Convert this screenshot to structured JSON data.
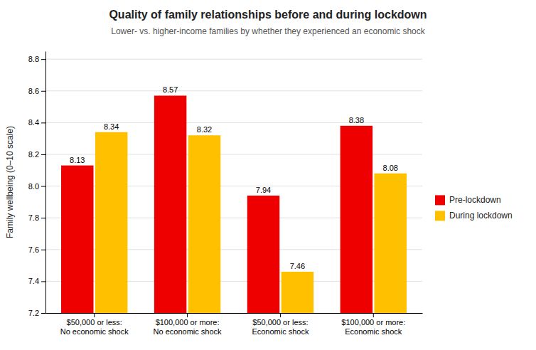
{
  "chart_data": {
    "type": "bar",
    "title": "Quality of family relationships before and during lockdown",
    "subtitle": "Lower- vs. higher-income families by whether they experienced an economic shock",
    "categories": [
      "$50,000 or less:\nNo economic shock",
      "$100,000 or more:\nNo economic shock",
      "$50,000 or less:\nEconomic shock",
      "$100,000 or more:\nEconomic shock"
    ],
    "series": [
      {
        "name": "Pre-lockdown",
        "color": "#EE0000",
        "values": [
          8.13,
          8.57,
          7.94,
          8.38
        ]
      },
      {
        "name": "During lockdown",
        "color": "#FFC000",
        "values": [
          8.34,
          8.32,
          7.46,
          8.08
        ]
      }
    ],
    "ylabel": "Family wellbeing (0–10 scale)",
    "ylim": [
      7.2,
      8.85
    ],
    "yticks": [
      7.2,
      7.4,
      7.6,
      7.8,
      {
        "value": 8.0,
        "label": "8.0"
      },
      8.2,
      8.4,
      8.6,
      8.8
    ],
    "grid": true,
    "legend": "right",
    "data_labels": true
  }
}
